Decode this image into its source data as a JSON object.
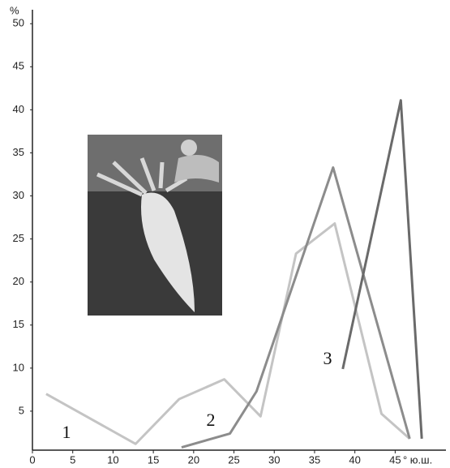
{
  "chart_data": {
    "type": "line",
    "y_label": "%",
    "x_label": "° ю.ш.",
    "xlim": [
      0,
      51.5
    ],
    "ylim": [
      0,
      52
    ],
    "xticks": [
      0,
      5,
      10,
      15,
      20,
      25,
      30,
      35,
      40,
      45
    ],
    "yticks": [
      5,
      10,
      15,
      20,
      25,
      30,
      35,
      40,
      45,
      50
    ],
    "series": [
      {
        "name": "1",
        "color": "#c4c4c4",
        "x": [
          1.7,
          12.8,
          18.2,
          23.8,
          28.3,
          32.7,
          37.5,
          43.3,
          46.8
        ],
        "values": [
          7,
          1.2,
          6.4,
          8.7,
          4.4,
          23.3,
          26.8,
          4.7,
          1.8
        ]
      },
      {
        "name": "2",
        "color": "#8c8c8c",
        "x": [
          18.5,
          24.5,
          27.8,
          37.3,
          46.8
        ],
        "values": [
          0.8,
          2.4,
          7.3,
          33.3,
          1.8
        ]
      },
      {
        "name": "3",
        "color": "#6a6a6a",
        "x": [
          38.5,
          45.7,
          48.3
        ],
        "values": [
          9.9,
          41.1,
          1.8
        ]
      }
    ]
  }
}
